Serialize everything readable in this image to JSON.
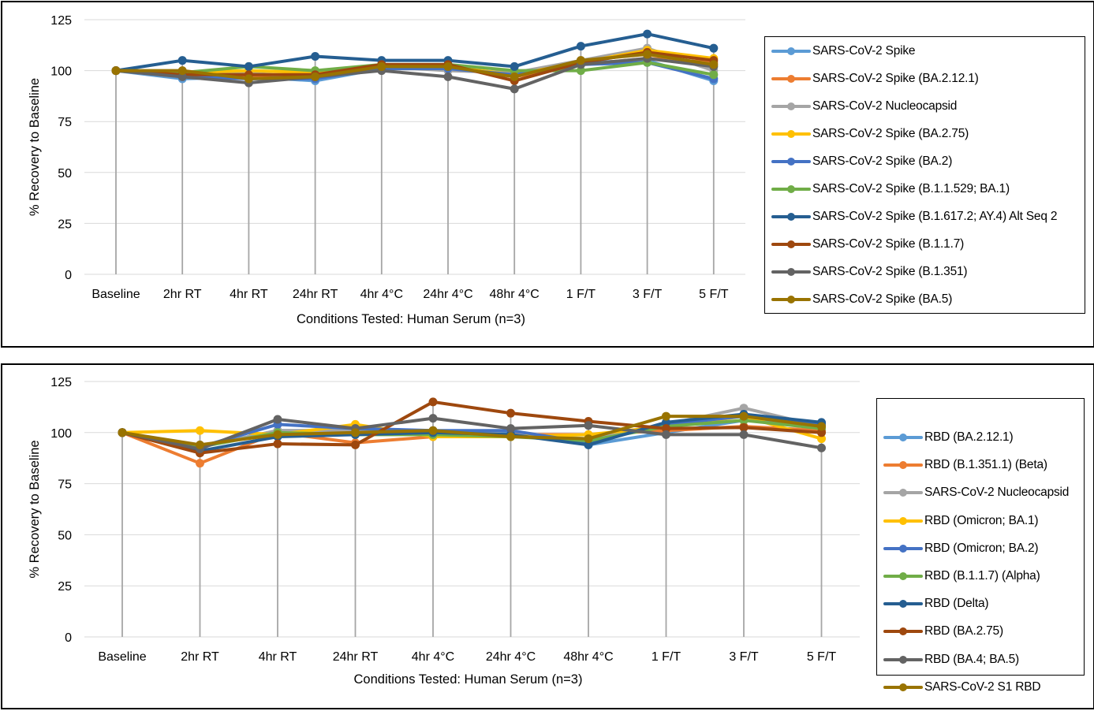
{
  "chart_data": [
    {
      "type": "line",
      "xlabel": "Conditions Tested: Human Serum (n=3)",
      "ylabel": "% Recovery to Baseline",
      "ylim": [
        0,
        125
      ],
      "yticks": [
        0,
        25,
        50,
        75,
        100,
        125
      ],
      "grid": "horizontal and vertical",
      "legend_position": "right",
      "categories": [
        "Baseline",
        "2hr RT",
        "4hr RT",
        "24hr RT",
        "4hr 4°C",
        "24hr 4°C",
        "48hr 4°C",
        "1 F/T",
        "3 F/T",
        "5 F/T"
      ],
      "series": [
        {
          "name": "SARS-CoV-2 Spike",
          "color": "#5B9BD5",
          "values": [
            100,
            96,
            97,
            95,
            101,
            101,
            98,
            104,
            105,
            95
          ]
        },
        {
          "name": "SARS-CoV-2 Spike (BA.2.12.1)",
          "color": "#ED7D31",
          "values": [
            100,
            98,
            97,
            98,
            102,
            102,
            97,
            103,
            106,
            104
          ]
        },
        {
          "name": "SARS-CoV-2 Nucleocapsid",
          "color": "#A5A5A5",
          "values": [
            100,
            97,
            99,
            96,
            102,
            100,
            99,
            105,
            111,
            100
          ]
        },
        {
          "name": "SARS-CoV-2 Spike (BA.2.75)",
          "color": "#FFC000",
          "values": [
            100,
            99,
            100,
            99,
            103,
            102,
            98,
            104,
            110,
            106
          ]
        },
        {
          "name": "SARS-CoV-2 Spike (BA.2)",
          "color": "#4472C4",
          "values": [
            100,
            97,
            96,
            96,
            101,
            101,
            98,
            103,
            104,
            96
          ]
        },
        {
          "name": "SARS-CoV-2 Spike (B.1.1.529; BA.1)",
          "color": "#70AD47",
          "values": [
            100,
            99,
            102,
            100,
            103,
            103,
            100,
            100,
            104,
            98
          ]
        },
        {
          "name": "SARS-CoV-2 Spike (B.1.617.2; AY.4) Alt Seq 2",
          "color": "#255E91",
          "values": [
            100,
            105,
            102,
            107,
            105,
            105,
            102,
            112,
            118,
            111
          ]
        },
        {
          "name": "SARS-CoV-2 Spike (B.1.1.7)",
          "color": "#9E480E",
          "values": [
            100,
            98,
            98,
            98,
            103,
            103,
            95,
            104,
            109,
            105
          ]
        },
        {
          "name": "SARS-CoV-2 Spike (B.1.351)",
          "color": "#636363",
          "values": [
            100,
            97,
            94,
            97,
            100,
            97,
            91,
            103,
            106,
            102
          ]
        },
        {
          "name": "SARS-CoV-2 Spike (BA.5)",
          "color": "#997300",
          "values": [
            100,
            100,
            96,
            97,
            102,
            102,
            97,
            105,
            108,
            103
          ]
        }
      ]
    },
    {
      "type": "line",
      "xlabel": "Conditions Tested: Human Serum (n=3)",
      "ylabel": "% Recovery to Baseline",
      "ylim": [
        0,
        125
      ],
      "yticks": [
        0,
        25,
        50,
        75,
        100,
        125
      ],
      "grid": "horizontal and vertical",
      "legend_position": "right",
      "categories": [
        "Baseline",
        "2hr RT",
        "4hr RT",
        "24hr RT",
        "4hr 4°C",
        "24hr 4°C",
        "48hr 4°C",
        "1 F/T",
        "3 F/T",
        "5 F/T"
      ],
      "series": [
        {
          "name": "RBD (BA.2.12.1)",
          "color": "#5B9BD5",
          "values": [
            100,
            93,
            101,
            101,
            100,
            100,
            94,
            100,
            106,
            104
          ]
        },
        {
          "name": "RBD (B.1.351.1) (Beta)",
          "color": "#ED7D31",
          "values": [
            100,
            85,
            100,
            95,
            98,
            99,
            99,
            101,
            103,
            101
          ]
        },
        {
          "name": "SARS-CoV-2 Nucleocapsid",
          "color": "#A5A5A5",
          "values": [
            100,
            93,
            101,
            101,
            101,
            99,
            97,
            104,
            112,
            103
          ]
        },
        {
          "name": "RBD (Omicron; BA.1)",
          "color": "#FFC000",
          "values": [
            100,
            101,
            99,
            104,
            98,
            98,
            99,
            103,
            108,
            97
          ]
        },
        {
          "name": "RBD (Omicron; BA.2)",
          "color": "#4472C4",
          "values": [
            100,
            93,
            104,
            102,
            101,
            101,
            95,
            104,
            108,
            104
          ]
        },
        {
          "name": "RBD (B.1.1.7) (Alpha)",
          "color": "#70AD47",
          "values": [
            100,
            93,
            100,
            99,
            99,
            98,
            96,
            103,
            106,
            102
          ]
        },
        {
          "name": "RBD (Delta)",
          "color": "#255E91",
          "values": [
            100,
            91,
            98,
            99,
            100,
            99,
            94,
            105,
            109,
            105
          ]
        },
        {
          "name": "RBD (BA.2.75)",
          "color": "#9E480E",
          "values": [
            100,
            90,
            94.5,
            94,
            115,
            109.5,
            105.5,
            102,
            102.5,
            100
          ]
        },
        {
          "name": "RBD (BA.4; BA.5)",
          "color": "#636363",
          "values": [
            100,
            92,
            106.5,
            102,
            107,
            102,
            103.5,
            99,
            99,
            92.5
          ]
        },
        {
          "name": "SARS-CoV-2 S1 RBD",
          "color": "#997300",
          "values": [
            100,
            94,
            99,
            100,
            101,
            98,
            97,
            108,
            108,
            103
          ]
        }
      ]
    }
  ]
}
